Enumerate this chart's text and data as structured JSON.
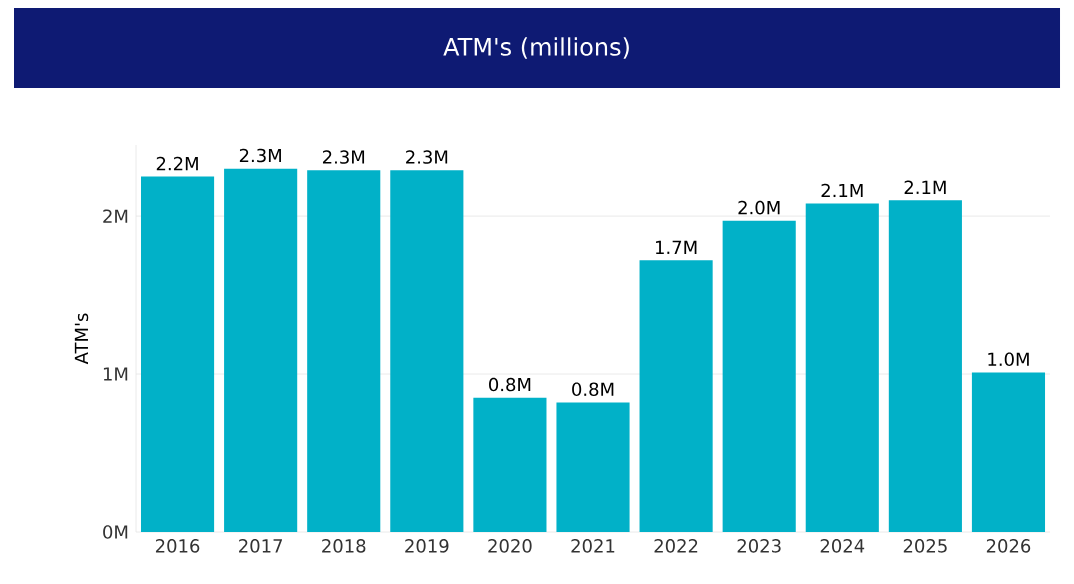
{
  "chart_data": {
    "type": "bar",
    "title": "ATM's (millions)",
    "ylabel": "ATM's",
    "categories": [
      "2016",
      "2017",
      "2018",
      "2019",
      "2020",
      "2021",
      "2022",
      "2023",
      "2024",
      "2025",
      "2026"
    ],
    "values": [
      2.25,
      2.3,
      2.29,
      2.29,
      0.85,
      0.82,
      1.72,
      1.97,
      2.08,
      2.1,
      1.01
    ],
    "value_labels": [
      "2.2M",
      "2.3M",
      "2.3M",
      "2.3M",
      "0.8M",
      "0.8M",
      "1.7M",
      "2.0M",
      "2.1M",
      "2.1M",
      "1.0M"
    ],
    "color": "#01b1c8",
    "ylim": [
      0,
      2.45
    ],
    "yticks": [
      {
        "value": 0,
        "label": "0M"
      },
      {
        "value": 1,
        "label": "1M"
      },
      {
        "value": 2,
        "label": "2M"
      }
    ],
    "grid": "y"
  }
}
